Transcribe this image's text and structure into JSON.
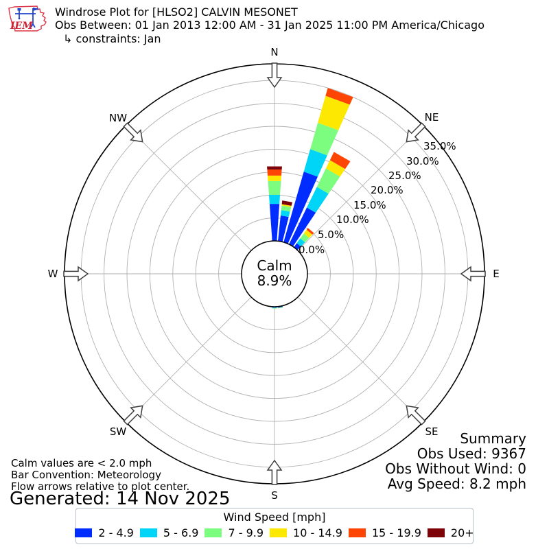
{
  "header": {
    "title": "Windrose Plot for [HLSO2] CALVIN MESONET",
    "subtitle": "Obs Between: 01 Jan 2013 12:00 AM - 31 Jan 2025 11:00 PM America/Chicago",
    "constraint": "↳ constraints: Jan",
    "logo_text": "IEM"
  },
  "chart_data": {
    "type": "windrose",
    "title": "Windrose Plot for [HLSO2] CALVIN MESONET",
    "units": "percent frequency by wind direction, speed bins in mph",
    "calm_pct": 8.9,
    "center_label": {
      "line1": "Calm",
      "line2": "8.9%"
    },
    "ring_step_pct": 5,
    "ring_max_pct": 35,
    "ring_labels": [
      "0.0%",
      "5.0%",
      "10.0%",
      "15.0%",
      "20.0%",
      "25.0%",
      "30.0%",
      "35.0%"
    ],
    "compass_labels": [
      "N",
      "NE",
      "E",
      "SE",
      "S",
      "SW",
      "W",
      "NW"
    ],
    "speed_bins": [
      {
        "label": "2 - 4.9",
        "color": "#012cff"
      },
      {
        "label": "5 - 6.9",
        "color": "#00d5f7"
      },
      {
        "label": "7 - 9.9",
        "color": "#7cfd7f"
      },
      {
        "label": "10 - 14.9",
        "color": "#fde801"
      },
      {
        "label": "15 - 19.9",
        "color": "#ff4503"
      },
      {
        "label": "20+",
        "color": "#7e0308"
      }
    ],
    "directions": [
      {
        "angle_deg": 0,
        "values": [
          8.1,
          2.0,
          3.0,
          1.2,
          1.3,
          0.7
        ]
      },
      {
        "angle_deg": 10,
        "values": [
          5.6,
          1.2,
          1.0,
          0.3,
          0.0,
          0.8
        ]
      },
      {
        "angle_deg": 20,
        "values": [
          16.0,
          5.1,
          6.0,
          6.1,
          1.8,
          0.0
        ]
      },
      {
        "angle_deg": 30,
        "values": [
          8.9,
          5.0,
          4.5,
          2.0,
          2.0,
          0.0
        ]
      },
      {
        "angle_deg": 40,
        "values": [
          1.1,
          1.3,
          1.3,
          1.0,
          0.5,
          0.0
        ]
      },
      {
        "angle_deg": 170,
        "values": [
          0.25,
          0.0,
          0.15,
          0.0,
          0.0,
          0.0
        ]
      },
      {
        "angle_deg": 180,
        "values": [
          0.2,
          0.1,
          0.1,
          0.0,
          0.0,
          0.0
        ]
      }
    ]
  },
  "summary": {
    "title": "Summary",
    "obs_used": "Obs Used: 9367",
    "obs_without_wind": "Obs Without Wind: 0",
    "avg_speed": "Avg Speed: 8.2 mph"
  },
  "footnotes": {
    "calm": "Calm values are < 2.0 mph",
    "convention": "Bar Convention: Meteorology",
    "arrows": "Flow arrows relative to plot center.",
    "generated": "Generated: 14 Nov 2025"
  },
  "legend": {
    "title": "Wind Speed [mph]"
  }
}
